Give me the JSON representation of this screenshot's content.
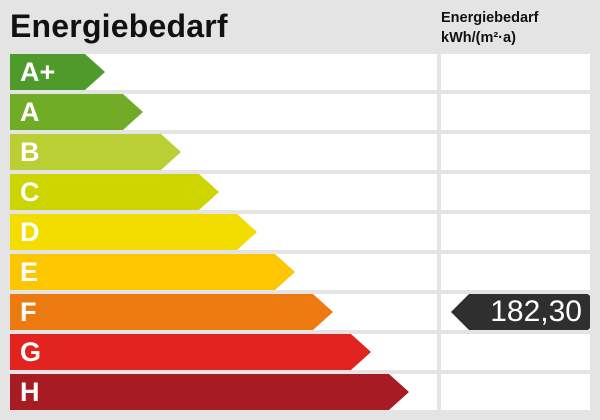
{
  "title": "Energiebedarf",
  "unit_header": {
    "line1": "Energiebedarf",
    "line2": "kWh/(m²·a)"
  },
  "classes": [
    {
      "label": "A+",
      "color": "#4e9a2b"
    },
    {
      "label": "A",
      "color": "#71ac27"
    },
    {
      "label": "B",
      "color": "#b9cf33"
    },
    {
      "label": "C",
      "color": "#cdd500"
    },
    {
      "label": "D",
      "color": "#f3dd00"
    },
    {
      "label": "E",
      "color": "#fcc700"
    },
    {
      "label": "F",
      "color": "#ec7a10"
    },
    {
      "label": "G",
      "color": "#e2231f"
    },
    {
      "label": "H",
      "color": "#a71b23"
    }
  ],
  "value": {
    "text": "182,30",
    "class": "F",
    "color": "#2f2f2f"
  }
}
